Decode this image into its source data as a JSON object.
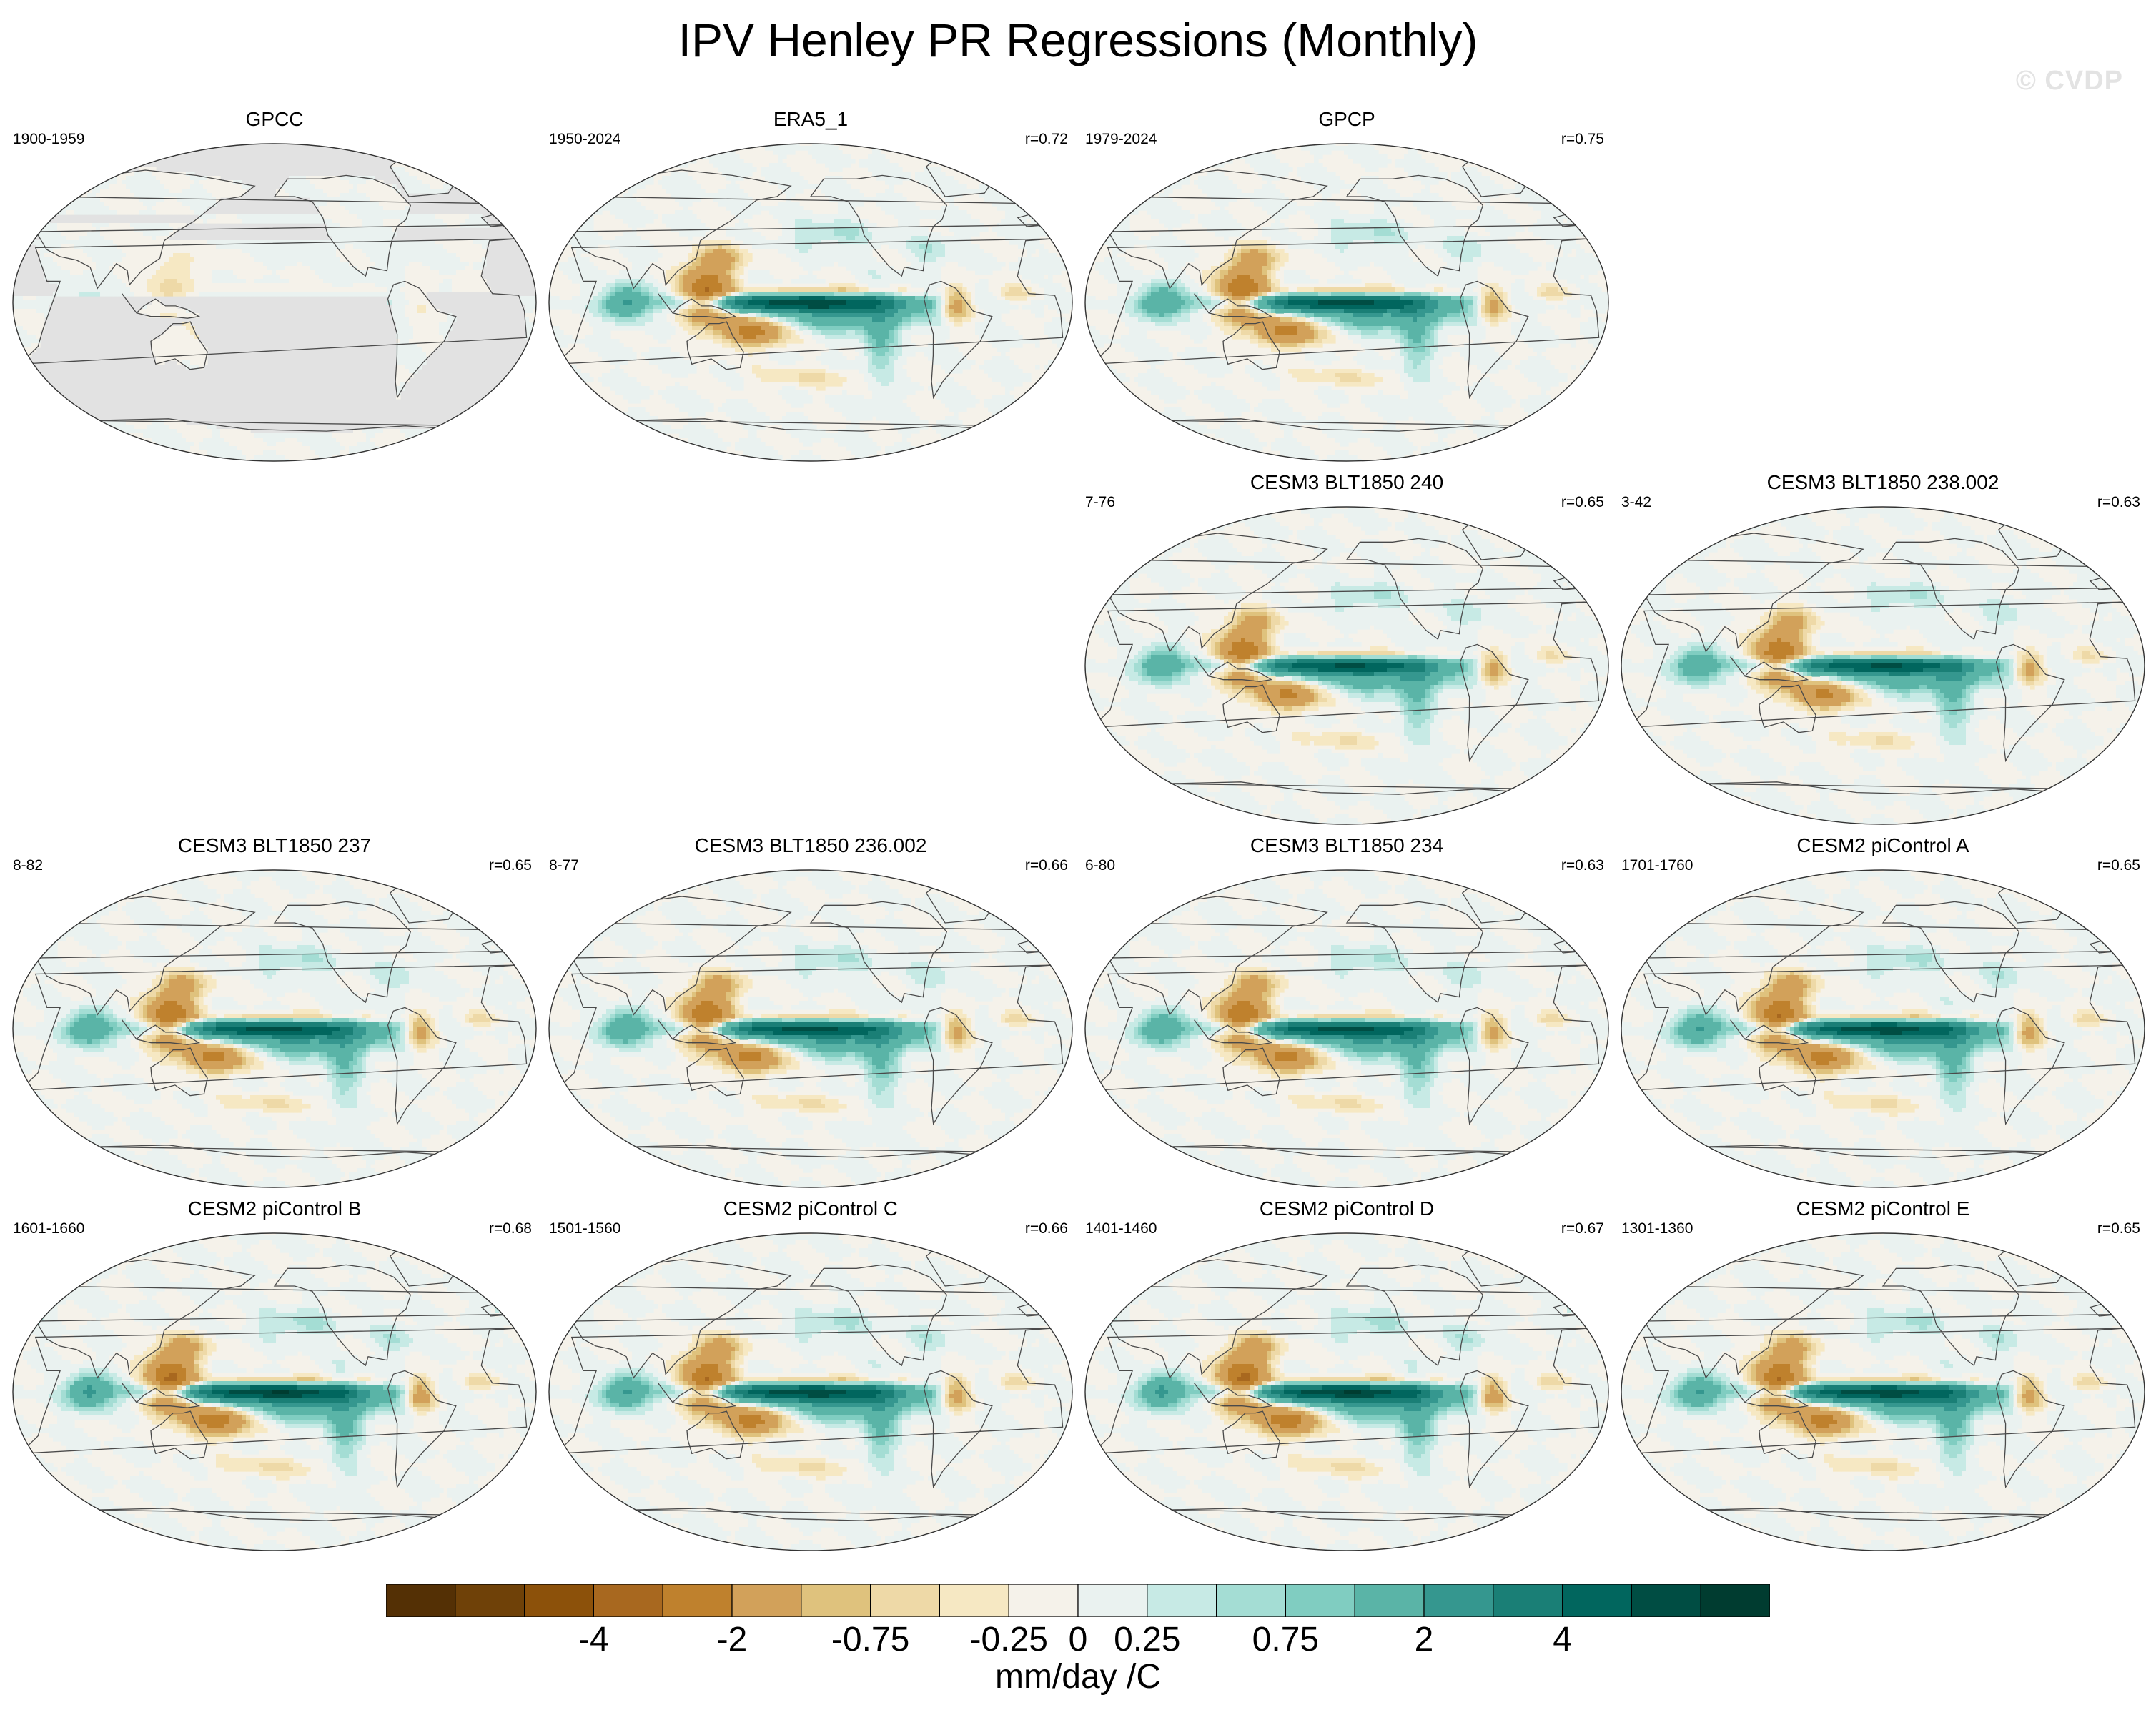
{
  "title": "IPV Henley PR Regressions (Monthly)",
  "watermark": "© CVDP",
  "chart_data": {
    "type": "heatmap",
    "projection": "Robinson-like global maps, Pacific-centered",
    "variable": "Precipitation regression onto IPV Henley index",
    "units": "mm/day /C",
    "colorbar": {
      "levels": [
        -6,
        -5,
        -4,
        -3,
        -2,
        -1,
        -0.75,
        -0.5,
        -0.25,
        0,
        0.25,
        0.5,
        0.75,
        1,
        2,
        3,
        4,
        5,
        6
      ],
      "tick_values": [
        -4,
        -2,
        -0.75,
        -0.25,
        0,
        0.25,
        0.75,
        2,
        4
      ],
      "tick_labels": [
        "-4",
        "-2",
        "-0.75",
        "-0.25",
        "0",
        "0.25",
        "0.75",
        "2",
        "4"
      ],
      "colors": [
        "#543005",
        "#6f4108",
        "#8c510a",
        "#a8681f",
        "#bf812d",
        "#d2a15a",
        "#dfc27d",
        "#eed9a7",
        "#f6e8c3",
        "#f5f2ea",
        "#eaf2f0",
        "#c7eae5",
        "#a4ddd4",
        "#80cdc1",
        "#5ab4a7",
        "#35978f",
        "#1a7f76",
        "#01665e",
        "#004d43",
        "#003c30"
      ],
      "units_label": "mm/day /C"
    },
    "panels": [
      {
        "title": "GPCC",
        "period": "1900-1959",
        "r": "",
        "kind": "gpcc",
        "amp": 0.35
      },
      {
        "title": "ERA5_1",
        "period": "1950-2024",
        "r": "r=0.72",
        "kind": "model",
        "amp": 1.0
      },
      {
        "title": "GPCP",
        "period": "1979-2024",
        "r": "r=0.75",
        "kind": "model",
        "amp": 0.95
      },
      {
        "title": "CESM3 BLT1850 240",
        "period": "7-76",
        "r": "r=0.65",
        "kind": "model",
        "amp": 0.9
      },
      {
        "title": "CESM3 BLT1850 238.002",
        "period": "3-42",
        "r": "r=0.63",
        "kind": "model",
        "amp": 0.9
      },
      {
        "title": "CESM3 BLT1850 237",
        "period": "8-82",
        "r": "r=0.65",
        "kind": "model",
        "amp": 0.95
      },
      {
        "title": "CESM3 BLT1850 236.002",
        "period": "8-77",
        "r": "r=0.66",
        "kind": "model",
        "amp": 0.95
      },
      {
        "title": "CESM3 BLT1850 234",
        "period": "6-80",
        "r": "r=0.63",
        "kind": "model",
        "amp": 0.95
      },
      {
        "title": "CESM2 piControl A",
        "period": "1701-1760",
        "r": "r=0.65",
        "kind": "model",
        "amp": 1.0
      },
      {
        "title": "CESM2 piControl B",
        "period": "1601-1660",
        "r": "r=0.68",
        "kind": "model",
        "amp": 1.05
      },
      {
        "title": "CESM2 piControl C",
        "period": "1501-1560",
        "r": "r=0.66",
        "kind": "model",
        "amp": 1.0
      },
      {
        "title": "CESM2 piControl D",
        "period": "1401-1460",
        "r": "r=0.67",
        "kind": "model",
        "amp": 1.05
      },
      {
        "title": "CESM2 piControl E",
        "period": "1301-1360",
        "r": "r=0.65",
        "kind": "model",
        "amp": 1.0
      }
    ]
  }
}
